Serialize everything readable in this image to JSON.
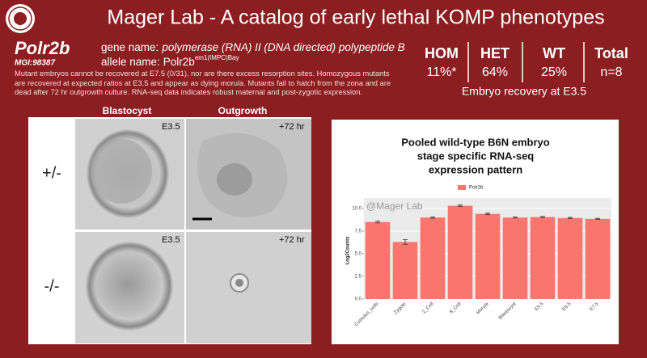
{
  "header": {
    "title": "Mager Lab - A catalog of early lethal KOMP phenotypes"
  },
  "gene": {
    "symbol": "Polr2b",
    "mgi": "MGI:98387",
    "gene_name_label": "gene name:",
    "gene_name": "polymerase (RNA) II (DNA directed) polypeptide B",
    "allele_name_label": "allele name:",
    "allele_symbol": "Polr2b",
    "allele_superscript": "em1(IMPC)Bay",
    "description": "Mutant embryos cannot be recovered at E7.5 (0/31), nor are there excess resorption sites. Homozygous mutants are recovered at expected ratios at E3.5 and appear as dying morula. Mutants fail to hatch from the zona and are dead after 72 hr outgrowth culture. RNA-seq data indicates robust maternal and post-zygotic expression."
  },
  "table": {
    "columns": [
      "HOM",
      "HET",
      "WT",
      "Total"
    ],
    "values": [
      "11%*",
      "64%",
      "25%",
      "n=8"
    ],
    "caption": "Embryo recovery at E3.5"
  },
  "images": {
    "columns": [
      "Blastocyst",
      "Outgrowth"
    ],
    "rows": [
      "+/-",
      "-/-"
    ],
    "stage_labels": [
      "E3.5",
      "+72 hr"
    ]
  },
  "chart_data": {
    "type": "bar",
    "title": [
      "Pooled wild-type B6N embryo",
      "stage specific RNA-seq",
      "expression pattern"
    ],
    "watermark": "@Mager Lab",
    "y_label": "Log2Counts",
    "series_name": "Polr2b",
    "color": "#f8766d",
    "categories": [
      "Cumulus_cells",
      "Zygote",
      "2_Cell",
      "8_Cell",
      "Morula",
      "Blastocyst",
      "E5.5",
      "E6.5",
      "E7.5"
    ],
    "values": [
      8.5,
      6.3,
      9.0,
      10.3,
      9.4,
      9.0,
      9.05,
      8.95,
      8.85
    ],
    "errors": [
      0.1,
      0.25,
      0.08,
      0.08,
      0.08,
      0.06,
      0.06,
      0.06,
      0.06
    ],
    "ylim": [
      0,
      10.8
    ],
    "yticks": [
      {
        "value": 0,
        "label": "0.0"
      },
      2.5,
      {
        "value": 5,
        "label": "5.0"
      },
      7.5,
      {
        "value": 10,
        "label": "10.0"
      }
    ],
    "grid": true
  }
}
